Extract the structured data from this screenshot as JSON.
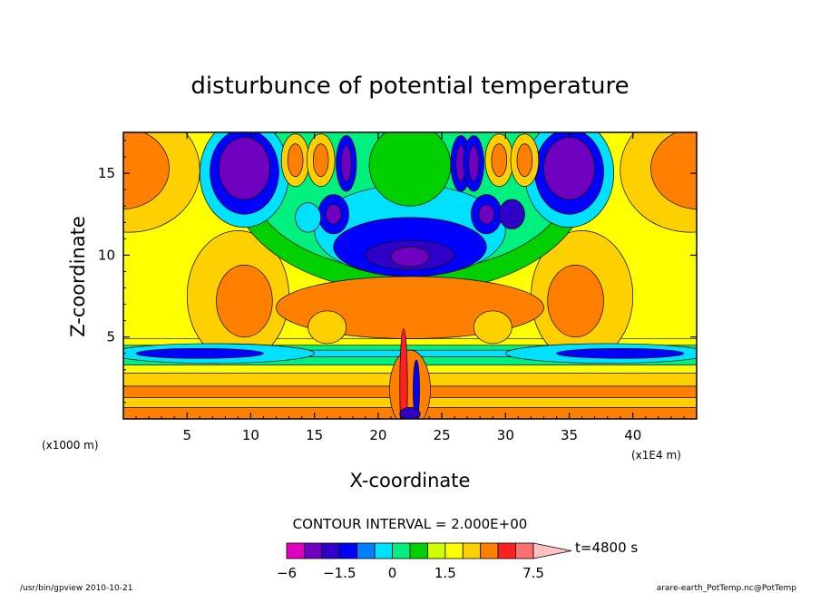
{
  "chart_data": {
    "type": "heatmap",
    "title": "disturbunce of potential temperature",
    "xlabel": "X-coordinate",
    "ylabel": "Z-coordinate",
    "x_unit_label": "(x1E4 m)",
    "y_unit_label": "(x1000 m)",
    "xlim": [
      0,
      45
    ],
    "ylim": [
      0,
      17.5
    ],
    "x_ticks": [
      "5",
      "10",
      "15",
      "20",
      "25",
      "30",
      "35",
      "40"
    ],
    "x_tick_values": [
      5,
      10,
      15,
      20,
      25,
      30,
      35,
      40
    ],
    "y_ticks": [
      "5",
      "10",
      "15"
    ],
    "y_tick_values": [
      5,
      10,
      15
    ],
    "contour_interval_text": "CONTOUR INTERVAL = 2.000E+00",
    "time_label": "t=4800 s",
    "colorbar": {
      "levels": [
        -6,
        -4.5,
        -3,
        -1.5,
        -1,
        -0.5,
        0,
        0.5,
        1,
        1.5,
        2,
        3,
        4.5,
        6,
        7.5
      ],
      "labels": [
        {
          "text": "−6",
          "value": -6
        },
        {
          "text": "−1.5",
          "value": -1.5
        },
        {
          "text": "0",
          "value": 0
        },
        {
          "text": "1.5",
          "value": 1.5
        },
        {
          "text": "7.5",
          "value": 7.5
        }
      ],
      "colors": [
        "#e000c0",
        "#7000c0",
        "#3000c8",
        "#0000ff",
        "#0080ff",
        "#00e0ff",
        "#00f080",
        "#00d000",
        "#d0ff00",
        "#ffff00",
        "#ffd000",
        "#ff8000",
        "#ff2020",
        "#ff7070",
        "#ffc0c0"
      ]
    },
    "field_colors": {
      "neg4": "#7000c0",
      "neg3": "#3000c8",
      "neg2": "#0000ff",
      "neg1": "#00e0ff",
      "zero": "#00f080",
      "pos0": "#00d000",
      "pos1": "#ffff00",
      "pos2": "#ffd000",
      "pos3": "#ff8000",
      "pos4": "#ff2020"
    }
  },
  "footer": {
    "left": "/usr/bin/gpview  2010-10-21",
    "right": "arare-earth_PotTemp.nc@PotTemp"
  }
}
